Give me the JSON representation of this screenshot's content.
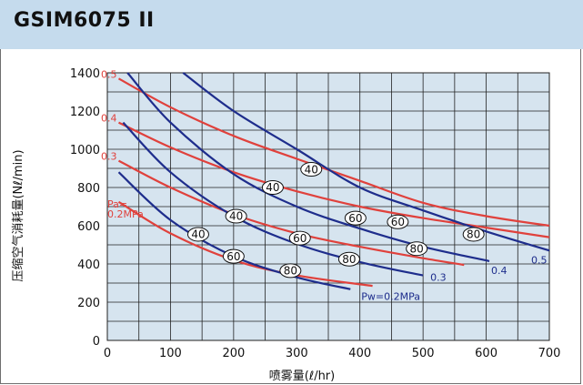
{
  "header": {
    "title": "GSIM6075 II"
  },
  "colors": {
    "blue": "#1e2d8c",
    "red": "#e0413c",
    "plot_bg": "#d6e4ef",
    "header_bg": "#c5dbed"
  },
  "chart_data": {
    "type": "line",
    "title": "GSIM6075 II",
    "xlabel": "喷雾量(ℓ/hr)",
    "ylabel": "压缩空气消耗量(Nℓ/min)",
    "xlim": [
      0,
      700
    ],
    "ylim": [
      0,
      1400
    ],
    "xticks": [
      "0",
      "100",
      "200",
      "300",
      "400",
      "500",
      "600",
      "700"
    ],
    "yticks": [
      "0",
      "200",
      "400",
      "600",
      "800",
      "1000",
      "1200",
      "1400"
    ],
    "grid": true,
    "blue_series": [
      {
        "label": "Pw=0.2MPa",
        "points": [
          [
            18,
            880
          ],
          [
            100,
            630
          ],
          [
            200,
            440
          ],
          [
            300,
            330
          ],
          [
            385,
            268
          ]
        ]
      },
      {
        "label": "0.3",
        "points": [
          [
            25,
            1140
          ],
          [
            100,
            880
          ],
          [
            200,
            650
          ],
          [
            300,
            505
          ],
          [
            400,
            410
          ],
          [
            500,
            340
          ]
        ]
      },
      {
        "label": "0.4",
        "points": [
          [
            32,
            1400
          ],
          [
            100,
            1140
          ],
          [
            200,
            870
          ],
          [
            300,
            700
          ],
          [
            400,
            585
          ],
          [
            500,
            490
          ],
          [
            605,
            415
          ]
        ]
      },
      {
        "label": "0.5",
        "points": [
          [
            120,
            1400
          ],
          [
            200,
            1200
          ],
          [
            300,
            1000
          ],
          [
            400,
            800
          ],
          [
            500,
            680
          ],
          [
            600,
            570
          ],
          [
            700,
            470
          ]
        ]
      }
    ],
    "red_series": [
      {
        "label": "Pa=\n0.2MPa",
        "points": [
          [
            18,
            725
          ],
          [
            100,
            560
          ],
          [
            200,
            420
          ],
          [
            300,
            340
          ],
          [
            420,
            285
          ]
        ]
      },
      {
        "label": "0.3",
        "points": [
          [
            18,
            940
          ],
          [
            100,
            800
          ],
          [
            200,
            660
          ],
          [
            300,
            560
          ],
          [
            400,
            490
          ],
          [
            500,
            430
          ],
          [
            565,
            395
          ]
        ]
      },
      {
        "label": "0.4",
        "points": [
          [
            18,
            1140
          ],
          [
            100,
            1010
          ],
          [
            200,
            880
          ],
          [
            300,
            780
          ],
          [
            400,
            700
          ],
          [
            500,
            640
          ],
          [
            600,
            590
          ],
          [
            700,
            540
          ]
        ]
      },
      {
        "label": "0.5",
        "points": [
          [
            18,
            1370
          ],
          [
            100,
            1220
          ],
          [
            200,
            1070
          ],
          [
            300,
            950
          ],
          [
            400,
            835
          ],
          [
            500,
            720
          ],
          [
            600,
            650
          ],
          [
            700,
            600
          ]
        ]
      }
    ],
    "annotations": [
      {
        "text": "40",
        "x": 323,
        "y": 895
      },
      {
        "text": "60",
        "x": 460,
        "y": 620
      },
      {
        "text": "80",
        "x": 580,
        "y": 555
      },
      {
        "text": "40",
        "x": 262,
        "y": 800
      },
      {
        "text": "60",
        "x": 393,
        "y": 640
      },
      {
        "text": "80",
        "x": 490,
        "y": 480
      },
      {
        "text": "40",
        "x": 204,
        "y": 650
      },
      {
        "text": "60",
        "x": 305,
        "y": 535
      },
      {
        "text": "80",
        "x": 383,
        "y": 425
      },
      {
        "text": "40",
        "x": 144,
        "y": 555
      },
      {
        "text": "60",
        "x": 200,
        "y": 440
      },
      {
        "text": "80",
        "x": 290,
        "y": 365
      }
    ]
  }
}
